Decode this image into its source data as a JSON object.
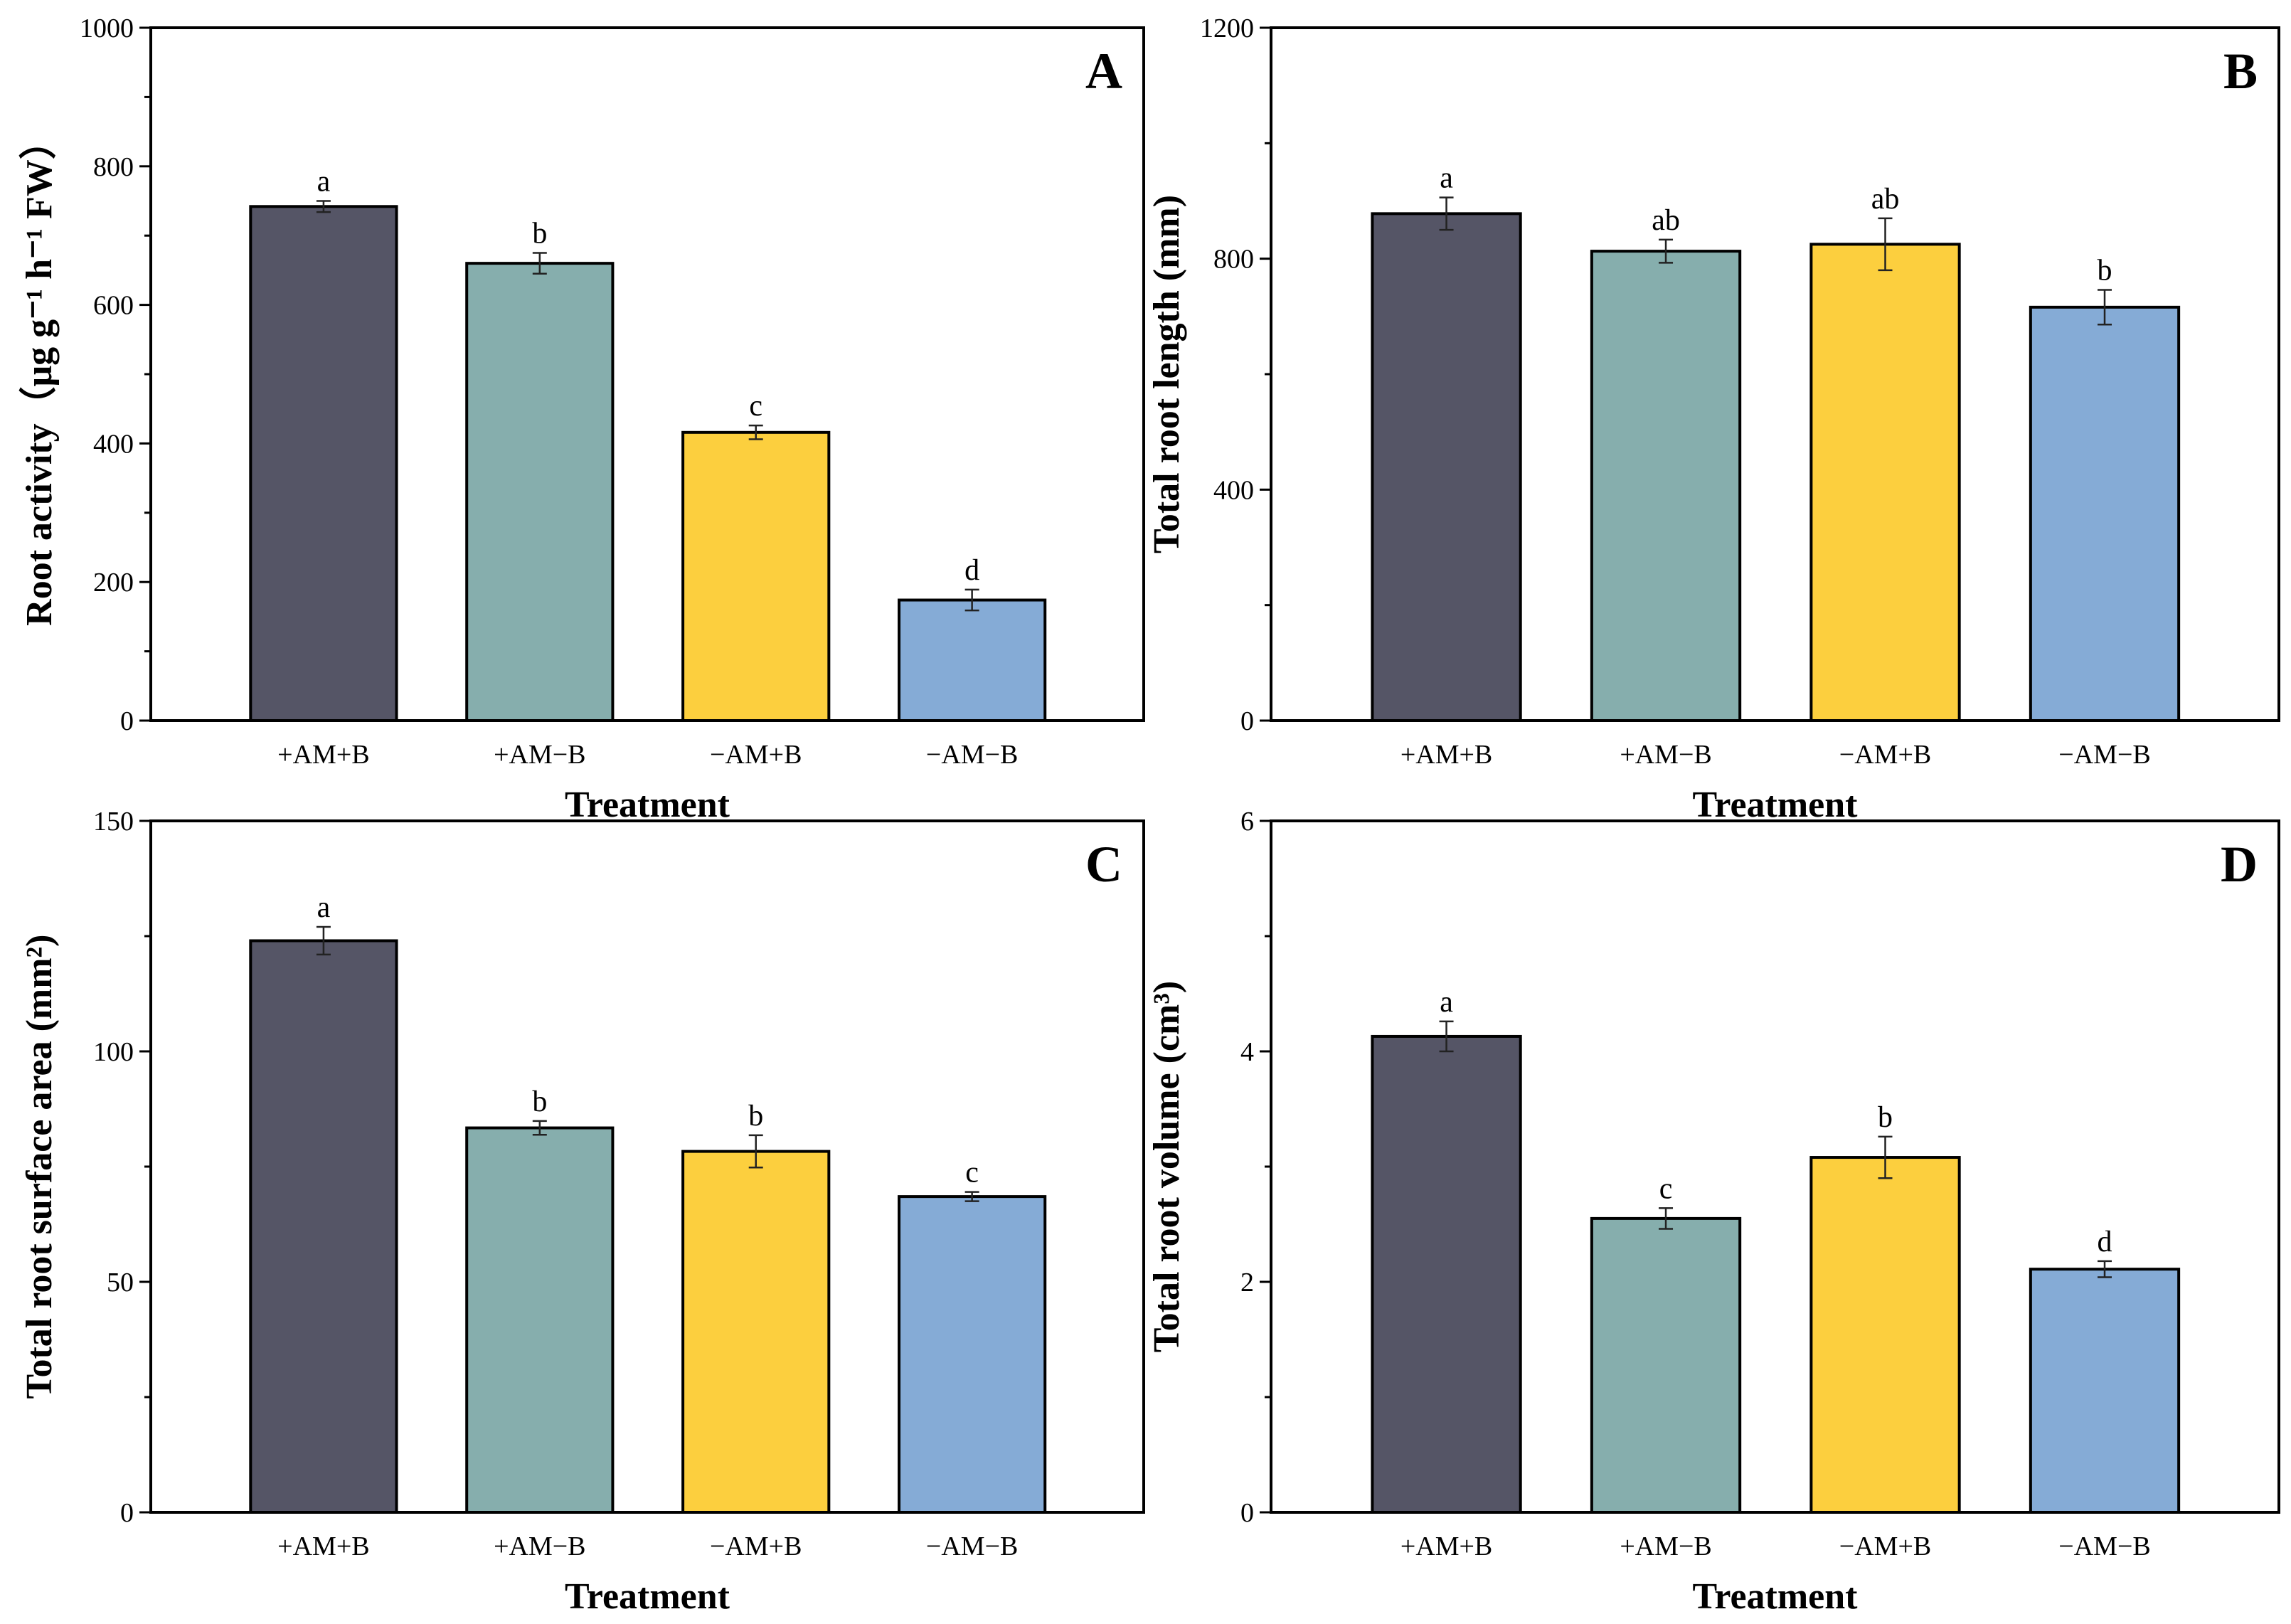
{
  "chart_data": [
    {
      "type": "bar",
      "panel": "A",
      "categories": [
        "+AM+B",
        "+AM−B",
        "−AM+B",
        "−AM−B"
      ],
      "values": [
        742,
        660,
        416,
        174
      ],
      "errors": [
        8,
        15,
        10,
        15
      ],
      "letters": [
        "a",
        "b",
        "c",
        "d"
      ],
      "xlabel": "Treatment",
      "ylabel": "Root activity（μg g⁻¹ h⁻¹ FW）",
      "ylim": [
        0,
        1000
      ],
      "yticks": [
        0,
        200,
        400,
        600,
        800,
        1000
      ],
      "minor_step": 100
    },
    {
      "type": "bar",
      "panel": "B",
      "categories": [
        "+AM+B",
        "+AM−B",
        "−AM+B",
        "−AM−B"
      ],
      "values": [
        878,
        813,
        825,
        716
      ],
      "errors": [
        28,
        20,
        45,
        30
      ],
      "letters": [
        "a",
        "ab",
        "ab",
        "b"
      ],
      "xlabel": "Treatment",
      "ylabel": "Total root length (mm)",
      "ylim": [
        0,
        1200
      ],
      "yticks": [
        0,
        400,
        800,
        1200
      ],
      "minor_step": 200
    },
    {
      "type": "bar",
      "panel": "C",
      "categories": [
        "+AM+B",
        "+AM−B",
        "−AM+B",
        "−AM−B"
      ],
      "values": [
        124,
        83.4,
        78.3,
        68.5
      ],
      "errors": [
        3,
        1.5,
        3.5,
        1
      ],
      "letters": [
        "a",
        "b",
        "b",
        "c"
      ],
      "xlabel": "Treatment",
      "ylabel": "Total root surface area (mm²)",
      "ylim": [
        0,
        150
      ],
      "yticks": [
        0,
        50,
        100,
        150
      ],
      "minor_step": 25
    },
    {
      "type": "bar",
      "panel": "D",
      "categories": [
        "+AM+B",
        "+AM−B",
        "−AM+B",
        "−AM−B"
      ],
      "values": [
        4.13,
        2.55,
        3.08,
        2.11
      ],
      "errors": [
        0.13,
        0.09,
        0.18,
        0.07
      ],
      "letters": [
        "a",
        "c",
        "b",
        "d"
      ],
      "xlabel": "Treatment",
      "ylabel": "Total root volume (cm³)",
      "ylim": [
        0,
        6
      ],
      "yticks": [
        0,
        2,
        4,
        6
      ],
      "minor_step": 1
    }
  ],
  "colors": [
    "#555566",
    "#86aead",
    "#fccf3e",
    "#85abd6"
  ]
}
